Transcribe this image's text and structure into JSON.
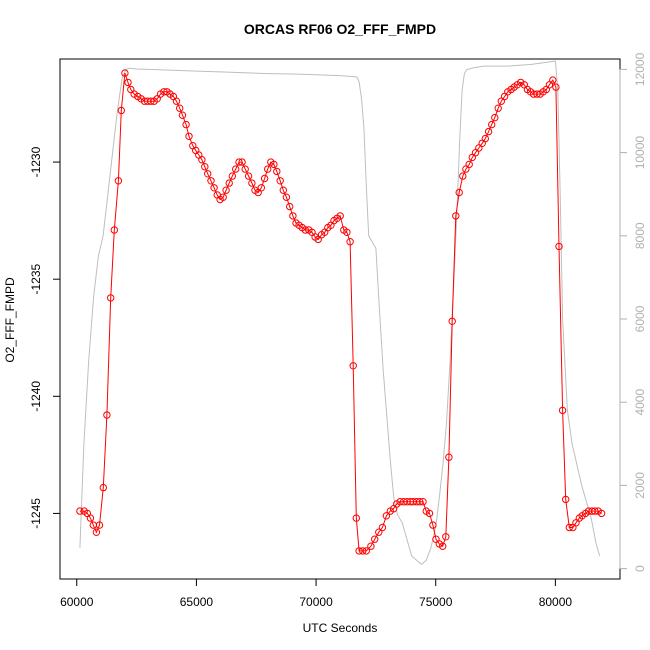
{
  "chart_data": {
    "type": "line",
    "title": "ORCAS RF06 O2_FFF_FMPD",
    "xlabel": "UTC Seconds",
    "ylabel": "O2_FFF_FMPD",
    "xlim": [
      59300,
      82700
    ],
    "ylim": [
      -1247.8,
      -1225.6
    ],
    "y2lim": [
      -250,
      12250
    ],
    "grid": false,
    "x_ticks": [
      60000,
      65000,
      70000,
      75000,
      80000
    ],
    "x_tick_labels": [
      "60000",
      "65000",
      "70000",
      "75000",
      "80000"
    ],
    "y_ticks": [
      -1245,
      -1240,
      -1235,
      -1230
    ],
    "y_tick_labels": [
      "-1245",
      "-1240",
      "-1235",
      "-1230"
    ],
    "y2_ticks": [
      0,
      2000,
      4000,
      6000,
      8000,
      10000,
      12000
    ],
    "y2_tick_labels": [
      "0",
      "2000",
      "4000",
      "6000",
      "8000",
      "10000",
      "12000"
    ],
    "series": [
      {
        "axis": "left",
        "color": "#ff0000",
        "style": "line+points",
        "x": [
          60130,
          60310,
          60440,
          60570,
          60690,
          60820,
          60950,
          61110,
          61260,
          61420,
          61570,
          61740,
          61860,
          62010,
          62140,
          62260,
          62400,
          62550,
          62690,
          62830,
          62960,
          63100,
          63230,
          63360,
          63500,
          63640,
          63770,
          63900,
          64040,
          64170,
          64300,
          64420,
          64570,
          64690,
          64850,
          64970,
          65100,
          65230,
          65350,
          65470,
          65610,
          65740,
          65870,
          65990,
          66120,
          66240,
          66370,
          66500,
          66640,
          66780,
          66910,
          67040,
          67180,
          67320,
          67450,
          67580,
          67710,
          67850,
          67980,
          68110,
          68240,
          68360,
          68500,
          68630,
          68760,
          68900,
          69030,
          69160,
          69290,
          69420,
          69550,
          69700,
          69830,
          69960,
          70090,
          70230,
          70360,
          70490,
          70620,
          70750,
          70880,
          71010,
          71160,
          71290,
          71420,
          71550,
          71680,
          71800,
          71950,
          72100,
          72290,
          72450,
          72620,
          72770,
          72940,
          73100,
          73240,
          73370,
          73510,
          73660,
          73800,
          73940,
          74060,
          74200,
          74330,
          74470,
          74600,
          74740,
          74880,
          75010,
          75150,
          75290,
          75420,
          75550,
          75690,
          75840,
          75980,
          76130,
          76260,
          76400,
          76530,
          76660,
          76800,
          76940,
          77070,
          77210,
          77340,
          77470,
          77610,
          77740,
          77880,
          78010,
          78150,
          78280,
          78410,
          78550,
          78700,
          78830,
          78960,
          79090,
          79230,
          79360,
          79490,
          79620,
          79750,
          79890,
          80020,
          80150,
          80300,
          80430,
          80580,
          80730,
          80860,
          81000,
          81120,
          81260,
          81390,
          81530,
          81650,
          81790,
          81930
        ],
        "y": [
          -1244.9,
          -1244.9,
          -1245.0,
          -1245.2,
          -1245.5,
          -1245.8,
          -1245.5,
          -1243.9,
          -1240.8,
          -1235.8,
          -1232.9,
          -1230.8,
          -1227.8,
          -1226.2,
          -1226.6,
          -1226.9,
          -1227.1,
          -1227.2,
          -1227.3,
          -1227.4,
          -1227.4,
          -1227.4,
          -1227.4,
          -1227.3,
          -1227.1,
          -1227.0,
          -1227.0,
          -1227.1,
          -1227.2,
          -1227.4,
          -1227.7,
          -1228.0,
          -1228.4,
          -1228.9,
          -1229.3,
          -1229.5,
          -1229.7,
          -1229.9,
          -1230.2,
          -1230.5,
          -1230.8,
          -1231.1,
          -1231.4,
          -1231.6,
          -1231.5,
          -1231.2,
          -1230.9,
          -1230.6,
          -1230.3,
          -1230.0,
          -1230.0,
          -1230.3,
          -1230.6,
          -1230.9,
          -1231.2,
          -1231.3,
          -1231.1,
          -1230.7,
          -1230.3,
          -1230.0,
          -1230.1,
          -1230.4,
          -1230.8,
          -1231.2,
          -1231.5,
          -1231.9,
          -1232.3,
          -1232.6,
          -1232.7,
          -1232.8,
          -1232.9,
          -1232.9,
          -1233.0,
          -1233.2,
          -1233.3,
          -1233.1,
          -1233.0,
          -1232.8,
          -1232.7,
          -1232.5,
          -1232.4,
          -1232.3,
          -1232.9,
          -1233.0,
          -1233.4,
          -1238.7,
          -1245.2,
          -1246.6,
          -1246.6,
          -1246.6,
          -1246.4,
          -1246.1,
          -1245.8,
          -1245.6,
          -1245.1,
          -1244.9,
          -1244.8,
          -1244.6,
          -1244.5,
          -1244.5,
          -1244.5,
          -1244.5,
          -1244.5,
          -1244.5,
          -1244.5,
          -1244.5,
          -1244.9,
          -1245.0,
          -1245.5,
          -1246.1,
          -1246.3,
          -1246.4,
          -1246.0,
          -1242.6,
          -1236.8,
          -1232.3,
          -1231.3,
          -1230.6,
          -1230.3,
          -1230.1,
          -1229.8,
          -1229.6,
          -1229.4,
          -1229.2,
          -1229.0,
          -1228.7,
          -1228.4,
          -1228.1,
          -1227.7,
          -1227.4,
          -1227.2,
          -1227.0,
          -1226.9,
          -1226.8,
          -1226.7,
          -1226.6,
          -1226.7,
          -1226.9,
          -1227.0,
          -1227.1,
          -1227.1,
          -1227.1,
          -1227.0,
          -1226.9,
          -1226.7,
          -1226.5,
          -1226.8,
          -1233.6,
          -1240.6,
          -1244.4,
          -1245.6,
          -1245.6,
          -1245.4,
          -1245.2,
          -1245.1,
          -1245.0,
          -1244.9,
          -1244.9,
          -1244.9,
          -1244.9,
          -1245.0
        ]
      },
      {
        "axis": "right",
        "color": "#bebebe",
        "style": "line",
        "x": [
          60130,
          60300,
          60500,
          60700,
          60900,
          61100,
          61300,
          61500,
          61700,
          61900,
          62050,
          62200,
          62500,
          63000,
          64000,
          65000,
          66000,
          67000,
          68000,
          69000,
          70000,
          71000,
          71500,
          71700,
          71800,
          71900,
          72000,
          72100,
          72200,
          72300,
          72500,
          72650,
          72800,
          72950,
          73100,
          73250,
          73400,
          73600,
          73800,
          74000,
          74200,
          74400,
          74600,
          74800,
          75000,
          75150,
          75300,
          75450,
          75600,
          75750,
          75900,
          76000,
          76100,
          76200,
          76300,
          76400,
          76500,
          76700,
          77000,
          77500,
          78000,
          79000,
          80000,
          80100,
          80200,
          80300,
          80500,
          80700,
          80900,
          81100,
          81300,
          81500,
          81700,
          81850
        ],
        "y": [
          500,
          3000,
          5000,
          6500,
          7500,
          8000,
          9000,
          10000,
          11000,
          11800,
          12000,
          12030,
          12010,
          12000,
          11980,
          11960,
          11940,
          11920,
          11900,
          11890,
          11870,
          11850,
          11830,
          11820,
          11700,
          11300,
          10600,
          9200,
          8000,
          7900,
          7700,
          6200,
          4800,
          3700,
          2600,
          1700,
          1300,
          1100,
          700,
          300,
          200,
          100,
          200,
          500,
          1000,
          1700,
          2500,
          3500,
          5000,
          6800,
          8800,
          10300,
          11500,
          11900,
          12000,
          12010,
          12030,
          12050,
          12080,
          12080,
          12080,
          12120,
          12200,
          11500,
          9000,
          6000,
          3800,
          3000,
          2500,
          2000,
          1600,
          1200,
          600,
          300
        ]
      }
    ]
  }
}
